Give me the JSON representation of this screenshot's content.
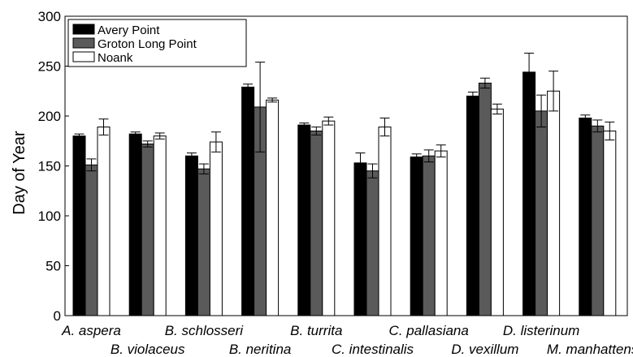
{
  "chart_data": {
    "type": "bar",
    "ylabel": "Day of Year",
    "xlabel": "",
    "ylim": [
      0,
      300
    ],
    "yticks": [
      0,
      50,
      100,
      150,
      200,
      250,
      300
    ],
    "grid": false,
    "legend_position": "top-left",
    "categories": [
      "A. aspera",
      "B. violaceus",
      "B. schlosseri",
      "B. neritina",
      "B. turrita",
      "C. intestinalis",
      "C. pallasiana",
      "D. vexillum",
      "D. listerinum",
      "M. manhattensis"
    ],
    "series": [
      {
        "name": "Avery Point",
        "color": "#000000",
        "values": [
          180,
          182,
          160,
          229,
          191,
          153,
          159,
          220,
          244,
          198
        ],
        "errors": [
          2,
          2,
          3,
          3,
          2,
          10,
          3,
          4,
          19,
          3
        ]
      },
      {
        "name": "Groton Long Point",
        "color": "#5a5a5a",
        "values": [
          151,
          172,
          147,
          209,
          185,
          145,
          160,
          233,
          205,
          190
        ],
        "errors": [
          6,
          3,
          5,
          45,
          4,
          7,
          6,
          5,
          16,
          6
        ]
      },
      {
        "name": "Noank",
        "color": "#ffffff",
        "values": [
          189,
          180,
          174,
          216,
          195,
          189,
          165,
          207,
          225,
          185
        ],
        "errors": [
          8,
          3,
          10,
          2,
          4,
          9,
          6,
          5,
          20,
          9
        ]
      }
    ]
  }
}
